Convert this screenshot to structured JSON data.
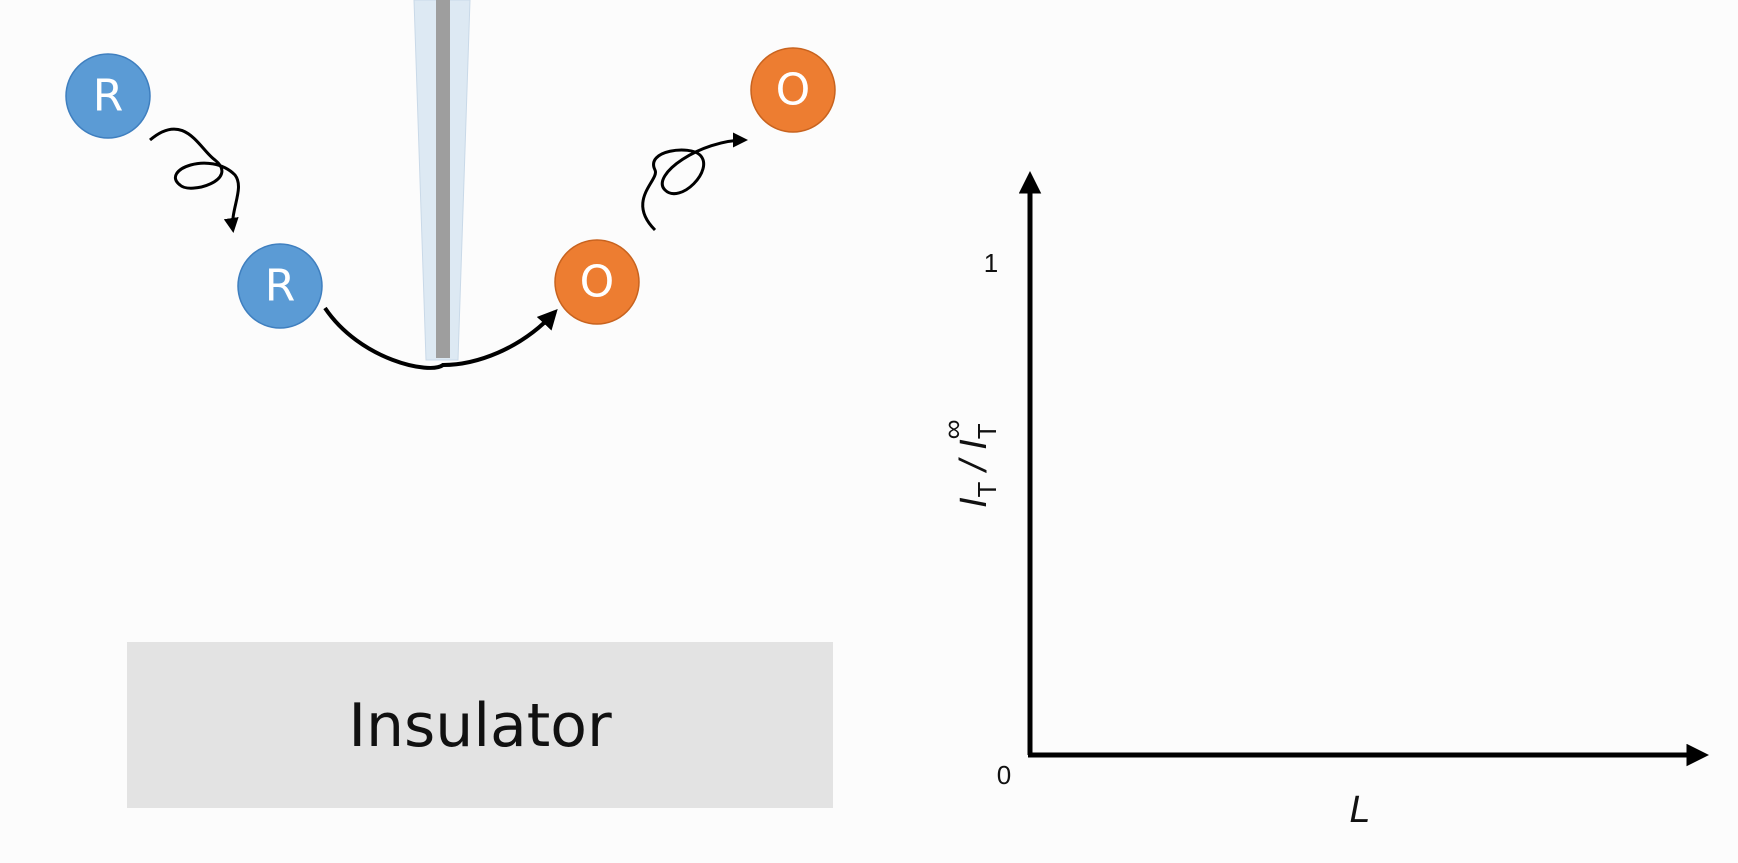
{
  "molecules": {
    "reduced_label": "R",
    "oxidized_label": "O",
    "reduced_color": "#5b9bd5",
    "oxidized_color": "#ed7d31"
  },
  "substrate": {
    "label": "Insulator",
    "color": "#e3e3e3"
  },
  "chart_data": {
    "type": "line",
    "xlabel": "L",
    "ylabel": "I_T / I_T^∞",
    "y_ticks": [
      "1",
      "0"
    ],
    "series": []
  },
  "axis_label_parts": {
    "x": "L",
    "y_main_1": "I",
    "y_sub_1": "T",
    "y_sep": " / ",
    "y_main_2": "I",
    "y_sub_2": "T",
    "y_sup_2": "∞"
  }
}
